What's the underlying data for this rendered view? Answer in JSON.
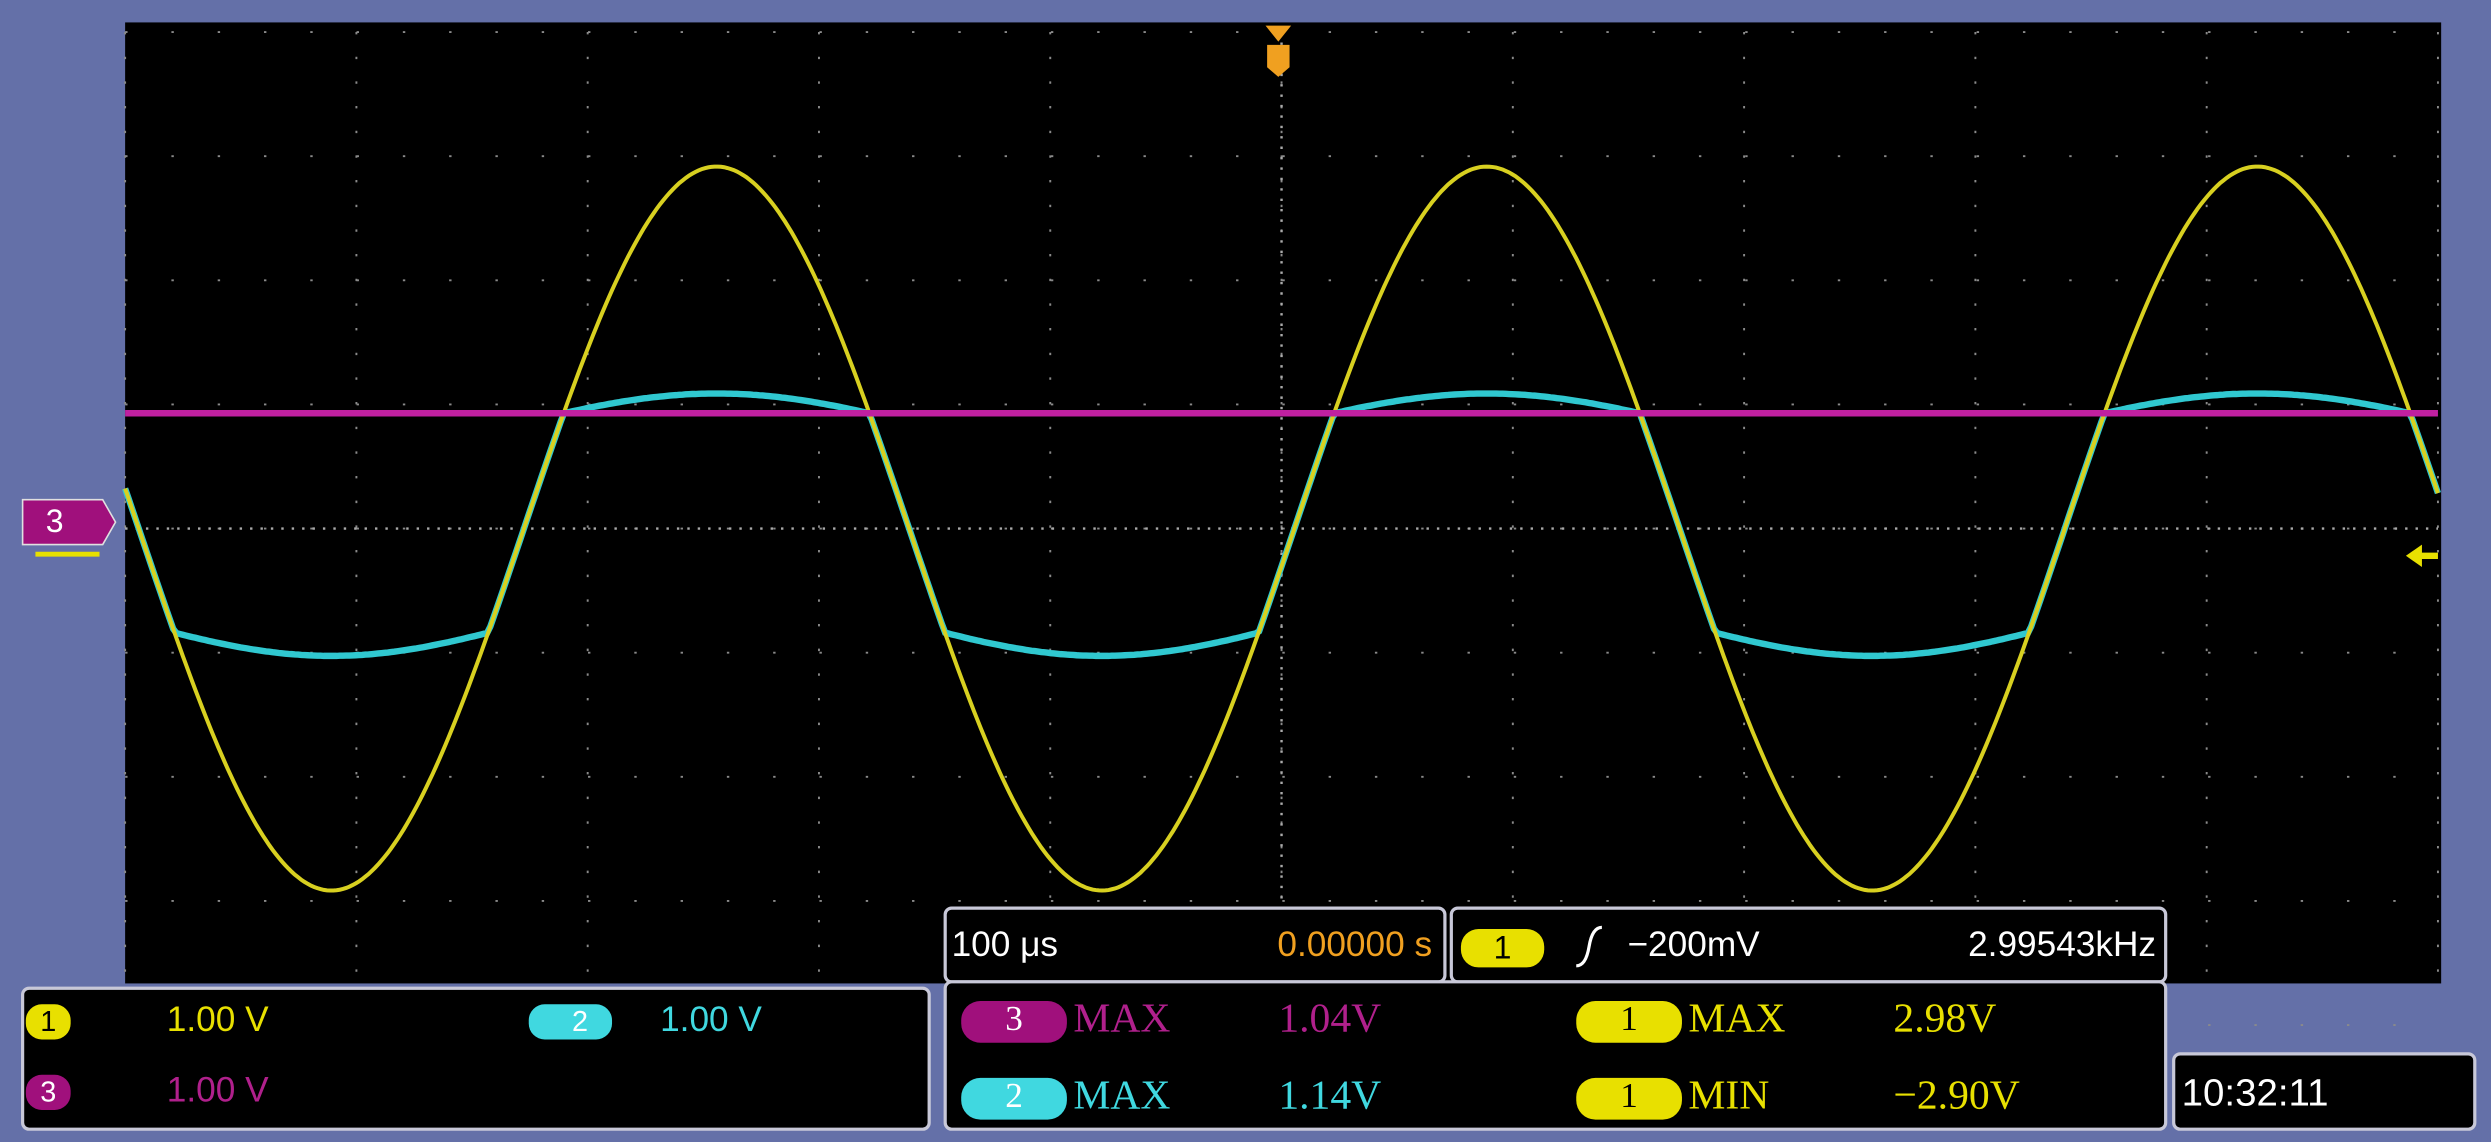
{
  "channel_marker": "3",
  "channel_settings": [
    {
      "channel": "1",
      "scale": "1.00 V"
    },
    {
      "channel": "2",
      "scale": "1.00 V"
    },
    {
      "channel": "3",
      "scale": "1.00 V"
    }
  ],
  "timebase": {
    "scale": "100 μs",
    "position": "0.00000 s"
  },
  "trigger": {
    "channel": "1",
    "level": "−200mV",
    "frequency": "2.99543kHz"
  },
  "measurements": [
    {
      "channel": "3",
      "type": "MAX",
      "value": "1.04V"
    },
    {
      "channel": "2",
      "type": "MAX",
      "value": "1.14V"
    },
    {
      "channel": "1",
      "type": "MAX",
      "value": "2.98V"
    },
    {
      "channel": "1",
      "type": "MIN",
      "value": "−2.90V"
    }
  ],
  "time": "10:32:11"
}
